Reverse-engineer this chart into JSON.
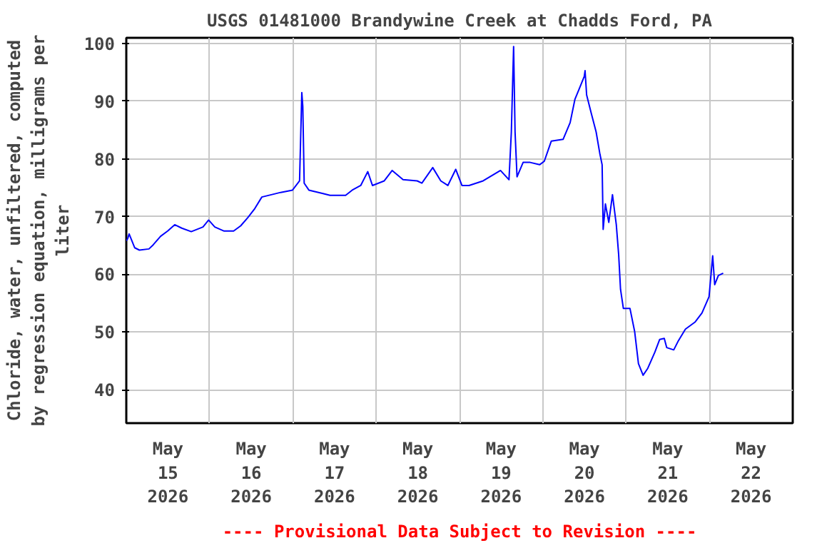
{
  "chart_data": {
    "type": "line",
    "title": "USGS 01481000 Brandywine Creek at Chadds Ford, PA",
    "ylabel": "Chloride, water, unfiltered, computed\nby regression equation, milligrams per\nliter",
    "annotations": [
      "---- Provisional Data Subject to Revision ----"
    ],
    "x": [
      "2026-05-15T00:00",
      "2026-05-15T00:25",
      "2026-05-15T00:49",
      "2026-05-15T02:26",
      "2026-05-15T03:47",
      "2026-05-15T06:31",
      "2026-05-15T07:44",
      "2026-05-15T09:53",
      "2026-05-15T11:55",
      "2026-05-15T13:57",
      "2026-05-15T15:59",
      "2026-05-15T18:43",
      "2026-05-15T22:05",
      "2026-05-15T23:43",
      "2026-05-16T01:30",
      "2026-05-16T04:11",
      "2026-05-16T06:55",
      "2026-05-16T08:57",
      "2026-05-16T10:59",
      "2026-05-16T13:01",
      "2026-05-16T15:03",
      "2026-05-16T17:47",
      "2026-05-16T20:28",
      "2026-05-16T23:53",
      "2026-05-17T01:55",
      "2026-05-17T02:34",
      "2026-05-17T02:51",
      "2026-05-17T03:15",
      "2026-05-17T04:36",
      "2026-05-17T08:40",
      "2026-05-17T10:42",
      "2026-05-17T15:11",
      "2026-05-17T17:05",
      "2026-05-17T19:32",
      "2026-05-17T21:34",
      "2026-05-17T22:55",
      "2026-05-18T02:19",
      "2026-05-18T04:36",
      "2026-05-18T07:44",
      "2026-05-18T11:48",
      "2026-05-18T13:09",
      "2026-05-18T16:17",
      "2026-05-18T18:36",
      "2026-05-18T20:38",
      "2026-05-18T22:55",
      "2026-05-19T00:42",
      "2026-05-19T02:44",
      "2026-05-19T06:48",
      "2026-05-19T11:48",
      "2026-05-19T14:15",
      "2026-05-19T14:56",
      "2026-05-19T15:35",
      "2026-05-19T16:00",
      "2026-05-19T16:34",
      "2026-05-19T18:19",
      "2026-05-19T20:21",
      "2026-05-19T23:04",
      "2026-05-20T00:25",
      "2026-05-20T02:27",
      "2026-05-20T05:50",
      "2026-05-20T07:52",
      "2026-05-20T09:14",
      "2026-05-20T10:35",
      "2026-05-20T11:56",
      "2026-05-20T12:10",
      "2026-05-20T12:37",
      "2026-05-20T13:58",
      "2026-05-20T15:21",
      "2026-05-20T16:24",
      "2026-05-20T17:05",
      "2026-05-20T17:23",
      "2026-05-20T18:02",
      "2026-05-20T19:00",
      "2026-05-20T20:04",
      "2026-05-20T21:10",
      "2026-05-20T21:51",
      "2026-05-20T22:23",
      "2026-05-20T23:12",
      "2026-05-21T01:06",
      "2026-05-21T02:27",
      "2026-05-21T03:33",
      "2026-05-21T04:53",
      "2026-05-21T06:14",
      "2026-05-21T08:16",
      "2026-05-21T09:39",
      "2026-05-21T10:59",
      "2026-05-21T11:41",
      "2026-05-21T13:43",
      "2026-05-21T15:04",
      "2026-05-21T17:05",
      "2026-05-21T19:49",
      "2026-05-21T21:51",
      "2026-05-21T23:53",
      "2026-05-22T00:56",
      "2026-05-22T01:31",
      "2026-05-22T02:34",
      "2026-05-22T03:58"
    ],
    "series": [
      {
        "color": "#0000ff",
        "values": [
          65.8,
          66.2,
          67,
          64.6,
          64.2,
          64.4,
          65.1,
          66.6,
          67.5,
          68.6,
          68,
          67.4,
          68.2,
          69.4,
          68.2,
          67.5,
          67.5,
          68.4,
          69.8,
          71.4,
          73.4,
          73.8,
          74.2,
          74.6,
          76.2,
          91.5,
          89.1,
          75.8,
          74.6,
          74,
          73.7,
          73.7,
          74.6,
          75.4,
          77.8,
          75.4,
          76.2,
          78,
          76.4,
          76.2,
          75.8,
          78.5,
          76.2,
          75.4,
          78.2,
          75.4,
          75.4,
          76.2,
          78,
          76.4,
          84.7,
          99.5,
          84.7,
          76.9,
          79.4,
          79.4,
          79,
          79.6,
          83.1,
          83.4,
          86.3,
          90.3,
          92.3,
          94.3,
          95.3,
          91.1,
          87.9,
          84.7,
          81,
          79,
          67.8,
          72.2,
          69,
          73.8,
          68.6,
          63.4,
          57.4,
          54.1,
          54.1,
          50.1,
          44.5,
          42.5,
          43.7,
          46.5,
          48.7,
          48.9,
          47.3,
          46.9,
          48.5,
          50.5,
          51.7,
          53.3,
          56.1,
          63.2,
          58.2,
          59.8,
          60.2
        ]
      }
    ],
    "xlim": [
      "2026-05-15T00:00",
      "2026-05-23T00:00"
    ],
    "xticks": [
      {
        "value": "2026-05-15T12:00",
        "label": "May\n15\n2026"
      },
      {
        "value": "2026-05-16T12:00",
        "label": "May\n16\n2026"
      },
      {
        "value": "2026-05-17T12:00",
        "label": "May\n17\n2026"
      },
      {
        "value": "2026-05-18T12:00",
        "label": "May\n18\n2026"
      },
      {
        "value": "2026-05-19T12:00",
        "label": "May\n19\n2026"
      },
      {
        "value": "2026-05-20T12:00",
        "label": "May\n20\n2026"
      },
      {
        "value": "2026-05-21T12:00",
        "label": "May\n21\n2026"
      },
      {
        "value": "2026-05-22T12:00",
        "label": "May\n22\n2026"
      },
      {
        "value": "2026-05-16T00:00",
        "label": null
      },
      {
        "value": "2026-05-17T00:00",
        "label": null
      },
      {
        "value": "2026-05-18T00:00",
        "label": null
      },
      {
        "value": "2026-05-19T00:00",
        "label": null
      },
      {
        "value": "2026-05-20T00:00",
        "label": null
      },
      {
        "value": "2026-05-21T00:00",
        "label": null
      },
      {
        "value": "2026-05-22T00:00",
        "label": null
      }
    ],
    "ylim": [
      34.2,
      101
    ],
    "yticks": [
      40,
      50,
      60,
      70,
      80,
      90,
      100
    ],
    "grid": true
  }
}
